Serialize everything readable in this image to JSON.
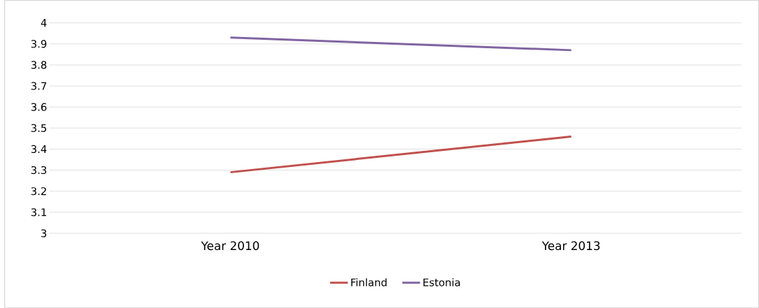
{
  "chart_data": {
    "type": "line",
    "categories": [
      "Year 2010",
      "Year 2013"
    ],
    "series": [
      {
        "name": "Finland",
        "color": "#c0504d",
        "values": [
          3.29,
          3.46
        ]
      },
      {
        "name": "Estonia",
        "color": "#8064a2",
        "values": [
          3.93,
          3.87
        ]
      }
    ],
    "ylim": [
      3,
      4
    ],
    "yticks": [
      3,
      3.1,
      3.2,
      3.3,
      3.4,
      3.5,
      3.6,
      3.7,
      3.8,
      3.9,
      4
    ],
    "grid": "y",
    "legend": "bottom",
    "marker": "none",
    "line_style": "solid"
  }
}
